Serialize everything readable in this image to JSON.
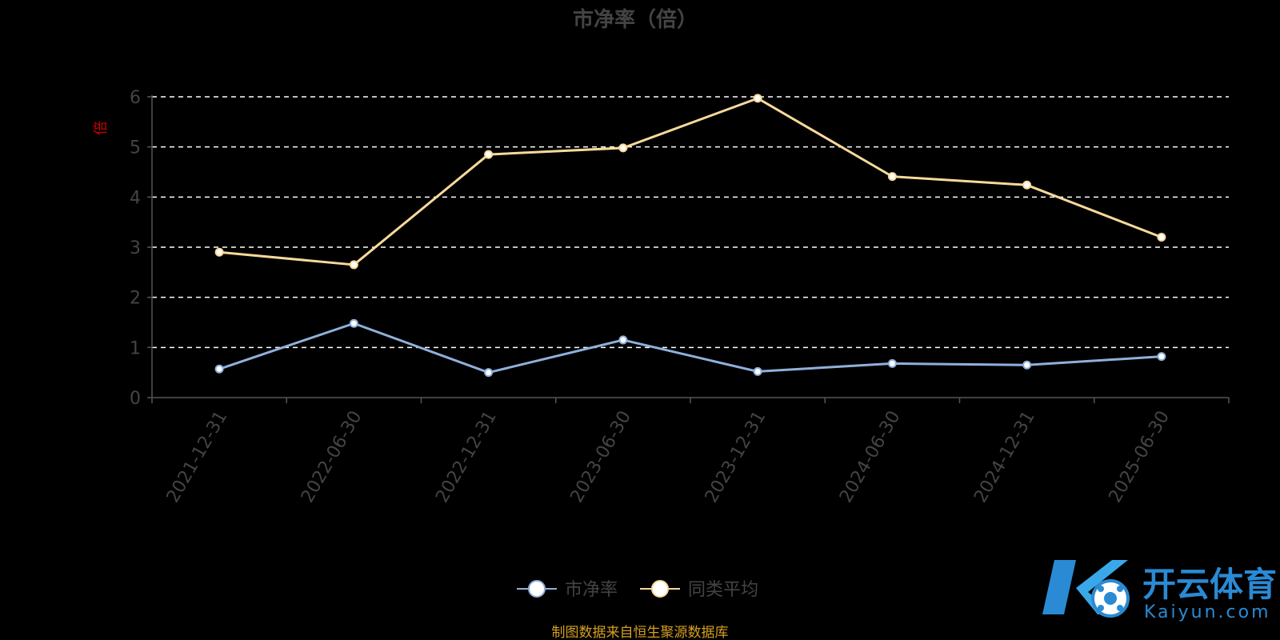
{
  "chart_data": {
    "type": "line",
    "title": "市净率（倍）",
    "ylabel": "倍",
    "ylim": [
      0,
      6
    ],
    "yticks": [
      0,
      1,
      2,
      3,
      4,
      5,
      6
    ],
    "categories": [
      "2021-12-31",
      "2022-06-30",
      "2022-12-31",
      "2023-06-30",
      "2023-12-31",
      "2024-06-30",
      "2024-12-31",
      "2025-06-30"
    ],
    "grid": true,
    "legend_position": "bottom",
    "series": [
      {
        "name": "市净率",
        "color": "#8fb0dc",
        "values": [
          0.57,
          1.48,
          0.5,
          1.15,
          0.52,
          0.68,
          0.65,
          0.82
        ]
      },
      {
        "name": "同类平均",
        "color": "#f8d99a",
        "values": [
          2.9,
          2.65,
          4.85,
          4.98,
          5.97,
          4.41,
          4.24,
          3.2
        ]
      }
    ],
    "source": "制图数据来自恒生聚源数据库"
  },
  "logo": {
    "text": "开云体育",
    "sub": "Kaiyun.com",
    "color": "#2a8ad4"
  }
}
